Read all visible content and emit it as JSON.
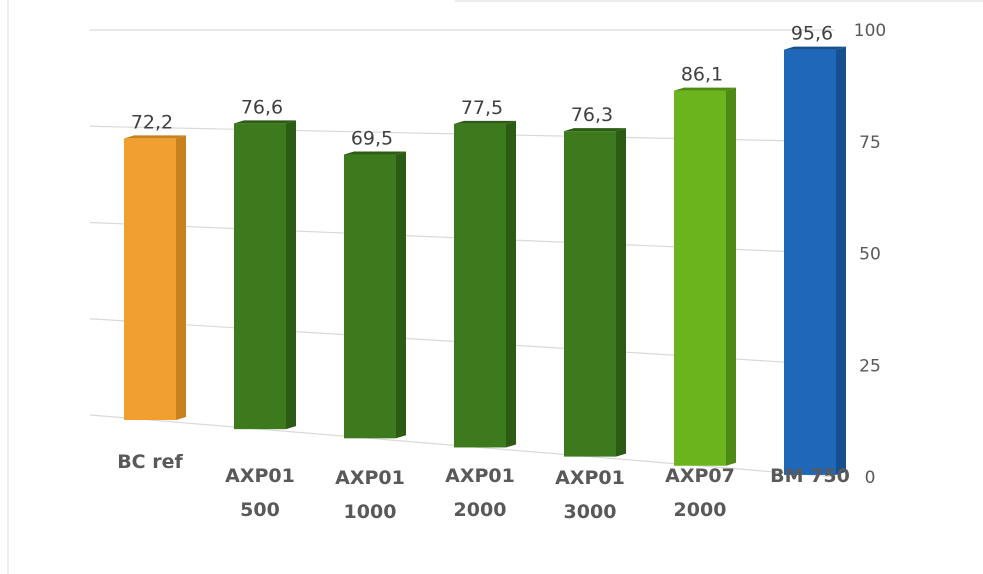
{
  "chart_data": {
    "type": "bar",
    "categories": [
      [
        "BC ref"
      ],
      [
        "AXP01",
        "500"
      ],
      [
        "AXP01",
        "1000"
      ],
      [
        "AXP01",
        "2000"
      ],
      [
        "AXP01",
        "3000"
      ],
      [
        "AXP07",
        "2000"
      ],
      [
        "BM 750"
      ]
    ],
    "values": [
      72.2,
      76.6,
      69.5,
      77.5,
      76.3,
      86.1,
      95.6
    ],
    "value_labels": [
      "72,2",
      "76,6",
      "69,5",
      "77,5",
      "76,3",
      "86,1",
      "95,6"
    ],
    "ylim": [
      0,
      100
    ],
    "y_ticks": [
      0,
      25,
      50,
      75,
      100
    ],
    "y_tick_labels": [
      "0",
      "25",
      "50",
      "75",
      "100"
    ],
    "y_axis_side": "right",
    "grid": true,
    "legend": "none",
    "style": "3d-column",
    "title": "",
    "xlabel": "",
    "ylabel": "",
    "colors": {
      "bars": [
        "#F0A030",
        "#3D7A1E",
        "#3D7A1E",
        "#3D7A1E",
        "#3D7A1E",
        "#6CB41E",
        "#1F67B8"
      ],
      "bars_side": [
        "#C9801E",
        "#2C5C14",
        "#2C5C14",
        "#2C5C14",
        "#2C5C14",
        "#4F8A14",
        "#17508F"
      ],
      "gridline": "#D9D9D9",
      "value_text": "#404040",
      "tick_text": "#595959",
      "category_text": "#595959"
    }
  }
}
